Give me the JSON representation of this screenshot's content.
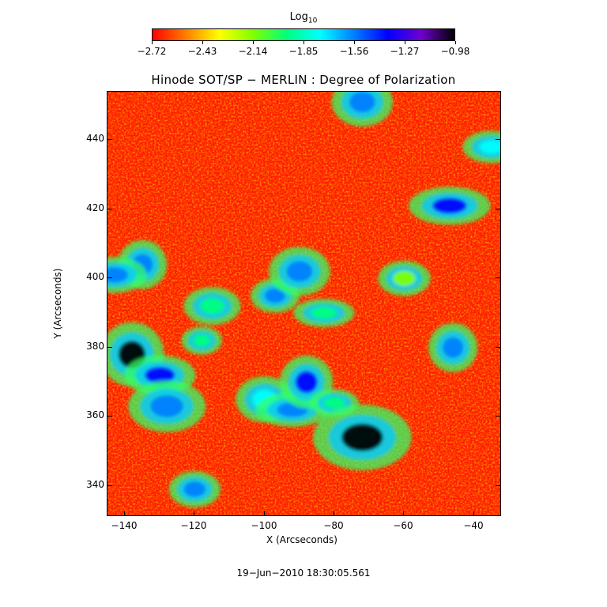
{
  "colorbar": {
    "title": "Log",
    "title_sub": "10",
    "tick_labels": [
      "−2.72",
      "−2.43",
      "−2.14",
      "−1.85",
      "−1.56",
      "−1.27",
      "−0.98"
    ],
    "colors": [
      "#ff0000",
      "#ff7f00",
      "#ffff00",
      "#7fff00",
      "#00ff7f",
      "#00ffff",
      "#007fff",
      "#0000ff",
      "#6f00cf",
      "#000000"
    ]
  },
  "chart_data": {
    "type": "heatmap",
    "title": "Hinode SOT/SP − MERLIN : Degree of Polarization",
    "xlabel": "X (Arcseconds)",
    "ylabel": "Y (Arcseconds)",
    "xlim": [
      -145,
      -32
    ],
    "ylim": [
      331,
      454
    ],
    "xticks": [
      -140,
      -120,
      -100,
      -80,
      -60,
      -40
    ],
    "yticks": [
      340,
      360,
      380,
      400,
      420,
      440
    ],
    "value_scale": "log10",
    "value_range": [
      -2.72,
      -0.98
    ],
    "grid": false,
    "high_polarization_regions": [
      {
        "x": -138,
        "y": 378,
        "level": -1.05
      },
      {
        "x": -130,
        "y": 372,
        "level": -1.3
      },
      {
        "x": -128,
        "y": 363,
        "level": -1.5
      },
      {
        "x": -118,
        "y": 382,
        "level": -1.9
      },
      {
        "x": -100,
        "y": 365,
        "level": -1.7
      },
      {
        "x": -92,
        "y": 362,
        "level": -1.6
      },
      {
        "x": -88,
        "y": 370,
        "level": -1.45
      },
      {
        "x": -80,
        "y": 364,
        "level": -1.95
      },
      {
        "x": -72,
        "y": 354,
        "level": -1.0
      },
      {
        "x": -97,
        "y": 395,
        "level": -1.6
      },
      {
        "x": -90,
        "y": 402,
        "level": -1.6
      },
      {
        "x": -83,
        "y": 390,
        "level": -1.9
      },
      {
        "x": -135,
        "y": 404,
        "level": -1.6
      },
      {
        "x": -143,
        "y": 401,
        "level": -1.5
      },
      {
        "x": -115,
        "y": 392,
        "level": -2.0
      },
      {
        "x": -120,
        "y": 339,
        "level": -1.5
      },
      {
        "x": -72,
        "y": 451,
        "level": -1.6
      },
      {
        "x": -47,
        "y": 421,
        "level": -1.4
      },
      {
        "x": -46,
        "y": 380,
        "level": -1.6
      },
      {
        "x": -35,
        "y": 438,
        "level": -1.7
      },
      {
        "x": -60,
        "y": 400,
        "level": -2.1
      }
    ]
  },
  "timestamp": "19−Jun−2010 18:30:05.561"
}
